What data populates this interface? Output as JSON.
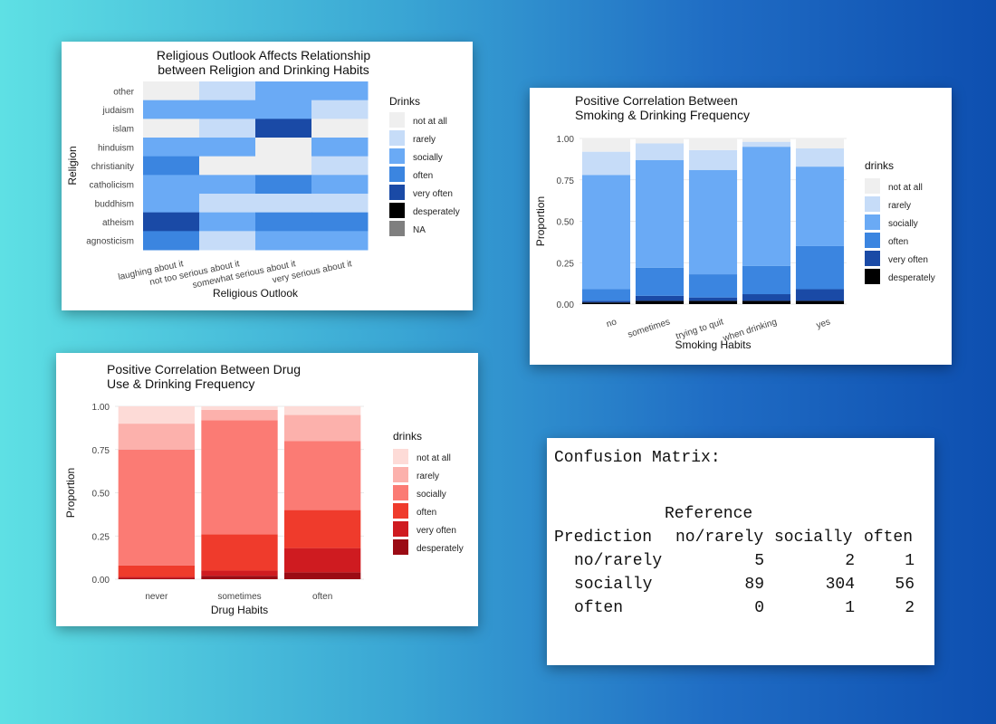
{
  "chart_data": [
    {
      "type": "heatmap",
      "title": "Religious Outlook Affects Relationship between Religion and Drinking Habits",
      "title_lines": [
        "Religious Outlook Affects Relationship",
        "between Religion and Drinking Habits"
      ],
      "xlabel": "Religious Outlook",
      "ylabel": "Religion",
      "x": [
        "laughing about it",
        "not too serious about it",
        "somewhat serious about it",
        "very serious about it"
      ],
      "y": [
        "other",
        "judaism",
        "islam",
        "hinduism",
        "christianity",
        "catholicism",
        "buddhism",
        "atheism",
        "agnosticism"
      ],
      "values": [
        [
          "not at all",
          "rarely",
          "socially",
          "socially"
        ],
        [
          "socially",
          "socially",
          "socially",
          "rarely"
        ],
        [
          "not at all",
          "rarely",
          "very often",
          "not at all"
        ],
        [
          "socially",
          "socially",
          "not at all",
          "socially"
        ],
        [
          "often",
          "not at all",
          "not at all",
          "rarely"
        ],
        [
          "socially",
          "socially",
          "often",
          "socially"
        ],
        [
          "socially",
          "rarely",
          "rarely",
          "rarely"
        ],
        [
          "very often",
          "socially",
          "often",
          "often"
        ],
        [
          "often",
          "rarely",
          "socially",
          "socially"
        ]
      ],
      "legend_title": "Drinks",
      "legend": [
        "not at all",
        "rarely",
        "socially",
        "often",
        "very often",
        "desperately",
        "NA"
      ],
      "colors": {
        "not at all": "#efefef",
        "rarely": "#c6dcf8",
        "socially": "#6aaaf5",
        "often": "#3b85e0",
        "very often": "#1a4aa6",
        "desperately": "#000000",
        "NA": "#7f7f7f"
      },
      "legend_position": "right",
      "grid": true
    },
    {
      "type": "bar",
      "stacked": true,
      "title": "Positive Correlation Between Smoking & Drinking Frequency",
      "title_lines": [
        "Positive Correlation Between",
        "Smoking & Drinking Frequency"
      ],
      "xlabel": "Smoking Habits",
      "ylabel": "Proportion",
      "ylim": [
        0,
        1
      ],
      "yticks": [
        "0.00",
        "0.25",
        "0.50",
        "0.75",
        "1.00"
      ],
      "categories": [
        "no",
        "sometimes",
        "trying to quit",
        "when drinking",
        "yes"
      ],
      "legend_title": "drinks",
      "series": [
        {
          "name": "desperately",
          "color": "#000000",
          "values": [
            0.01,
            0.02,
            0.02,
            0.02,
            0.02
          ]
        },
        {
          "name": "very often",
          "color": "#1a4aa6",
          "values": [
            0.01,
            0.03,
            0.02,
            0.04,
            0.07
          ]
        },
        {
          "name": "often",
          "color": "#3b85e0",
          "values": [
            0.07,
            0.17,
            0.14,
            0.17,
            0.26
          ]
        },
        {
          "name": "socially",
          "color": "#6aaaf5",
          "values": [
            0.69,
            0.65,
            0.63,
            0.72,
            0.48
          ]
        },
        {
          "name": "rarely",
          "color": "#c6dcf8",
          "values": [
            0.14,
            0.1,
            0.12,
            0.03,
            0.11
          ]
        },
        {
          "name": "not at all",
          "color": "#efefef",
          "values": [
            0.08,
            0.03,
            0.07,
            0.02,
            0.06
          ]
        }
      ],
      "legend_position": "right",
      "grid": true
    },
    {
      "type": "bar",
      "stacked": true,
      "title": "Positive Correlation Between Drug Use & Drinking Frequency",
      "title_lines": [
        "Positive Correlation Between Drug",
        "Use & Drinking Frequency"
      ],
      "xlabel": "Drug Habits",
      "ylabel": "Proportion",
      "ylim": [
        0,
        1
      ],
      "yticks": [
        "0.00",
        "0.25",
        "0.50",
        "0.75",
        "1.00"
      ],
      "categories": [
        "never",
        "sometimes",
        "often"
      ],
      "legend_title": "drinks",
      "series": [
        {
          "name": "desperately",
          "color": "#9b0b14",
          "values": [
            0.005,
            0.02,
            0.04
          ]
        },
        {
          "name": "very often",
          "color": "#cf1b20",
          "values": [
            0.01,
            0.03,
            0.14
          ]
        },
        {
          "name": "often",
          "color": "#ef3b2c",
          "values": [
            0.065,
            0.21,
            0.22
          ]
        },
        {
          "name": "socially",
          "color": "#fb7b74",
          "values": [
            0.67,
            0.66,
            0.4
          ]
        },
        {
          "name": "rarely",
          "color": "#fcb1ac",
          "values": [
            0.15,
            0.06,
            0.15
          ]
        },
        {
          "name": "not at all",
          "color": "#fddbd7",
          "values": [
            0.1,
            0.02,
            0.05
          ]
        }
      ],
      "legend_position": "right",
      "grid": true
    },
    {
      "type": "table",
      "title": "Confusion Matrix:",
      "col_group_label": "Reference",
      "row_header": "Prediction",
      "columns": [
        "no/rarely",
        "socially",
        "often"
      ],
      "rows": [
        {
          "label": "no/rarely",
          "values": [
            5,
            2,
            1
          ]
        },
        {
          "label": "socially",
          "values": [
            89,
            304,
            56
          ]
        },
        {
          "label": "often",
          "values": [
            0,
            1,
            2
          ]
        }
      ]
    }
  ]
}
